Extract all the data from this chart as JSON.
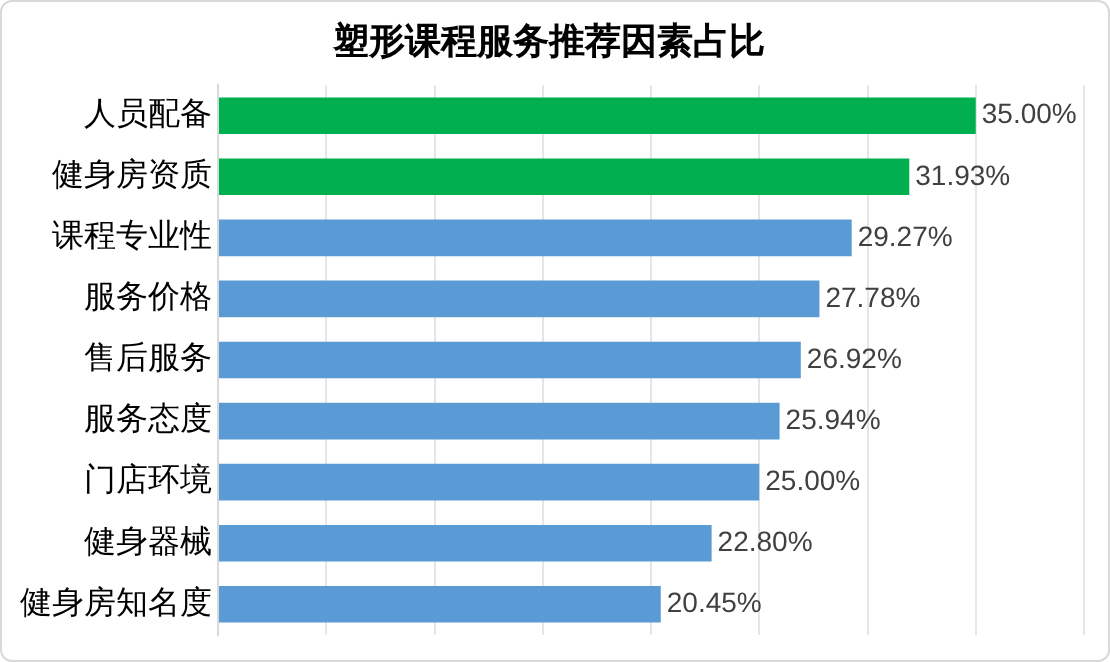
{
  "chart_data": {
    "type": "bar",
    "orientation": "horizontal",
    "title": "塑形课程服务推荐因素占比",
    "categories": [
      "人员配备",
      "健身房资质",
      "课程专业性",
      "服务价格",
      "售后服务",
      "服务态度",
      "门店环境",
      "健身器械",
      "健身房知名度"
    ],
    "values": [
      35.0,
      31.93,
      29.27,
      27.78,
      26.92,
      25.94,
      25.0,
      22.8,
      20.45
    ],
    "colors": [
      "#00b050",
      "#00b050",
      "#5b9bd5",
      "#5b9bd5",
      "#5b9bd5",
      "#5b9bd5",
      "#5b9bd5",
      "#5b9bd5",
      "#5b9bd5"
    ],
    "value_labels": [
      "35.00%",
      "31.93%",
      "29.27%",
      "27.78%",
      "26.92%",
      "25.94%",
      "25.00%",
      "22.80%",
      "20.45%"
    ],
    "xlim": [
      0,
      40
    ],
    "xticks": [
      {
        "value": 0,
        "label": null
      },
      {
        "value": 5,
        "label": null
      },
      {
        "value": 10,
        "label": null
      },
      {
        "value": 15,
        "label": null
      },
      {
        "value": 20,
        "label": null
      },
      {
        "value": 25,
        "label": null
      },
      {
        "value": 30,
        "label": null
      },
      {
        "value": 35,
        "label": null
      },
      {
        "value": 40,
        "label": null
      }
    ],
    "tick_labels": "y",
    "grid": "x",
    "legend": false
  }
}
